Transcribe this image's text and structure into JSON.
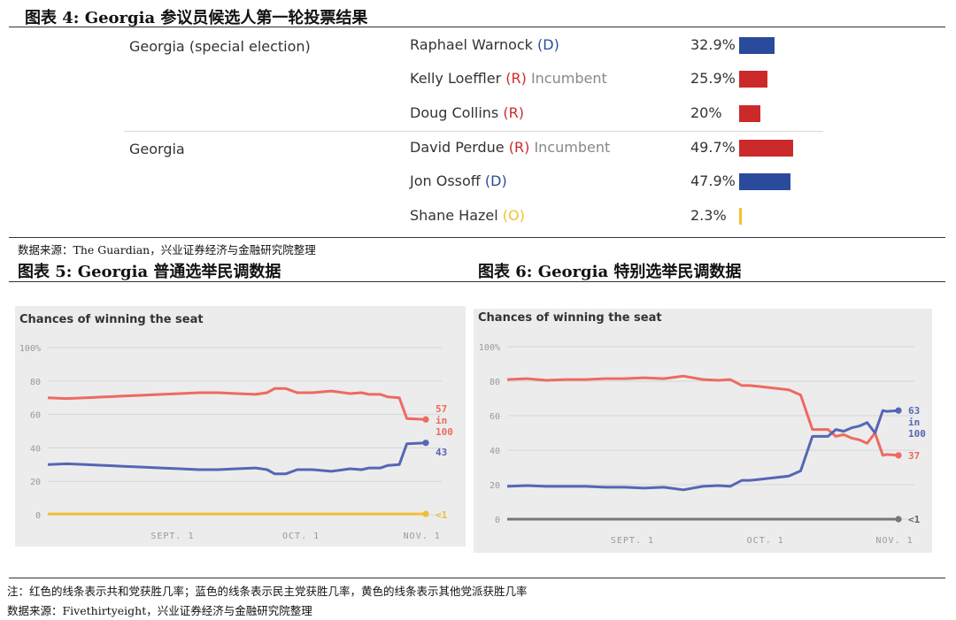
{
  "fig4": {
    "title": "图表 4:  Georgia 参议员候选人第一轮投票结果",
    "source": "数据来源：The Guardian，兴业证券经济与金融研究院整理",
    "rows": [
      {
        "state": "Georgia (special election)",
        "name": "Raphael Warnock",
        "paren": "(D)",
        "party": "D",
        "incumbent": "",
        "pct_label": "32.9%",
        "pct": 32.9
      },
      {
        "state": "",
        "name": "Kelly Loeffler",
        "paren": "(R)",
        "party": "R",
        "incumbent": "Incumbent",
        "pct_label": "25.9%",
        "pct": 25.9
      },
      {
        "state": "",
        "name": "Doug Collins",
        "paren": "(R)",
        "party": "R",
        "incumbent": "",
        "pct_label": "20%",
        "pct": 20
      },
      {
        "state": "Georgia",
        "name": "David Perdue",
        "paren": "(R)",
        "party": "R",
        "incumbent": "Incumbent",
        "pct_label": "49.7%",
        "pct": 49.7
      },
      {
        "state": "",
        "name": "Jon Ossoff",
        "paren": "(D)",
        "party": "D",
        "incumbent": "",
        "pct_label": "47.9%",
        "pct": 47.9
      },
      {
        "state": "",
        "name": "Shane Hazel",
        "paren": "(O)",
        "party": "O",
        "incumbent": "",
        "pct_label": "2.3%",
        "pct": 2.3
      }
    ]
  },
  "fig5": {
    "title": "图表 5:  Georgia 普通选举民调数据"
  },
  "fig6": {
    "title": "图表 6:  Georgia 特别选举民调数据"
  },
  "footer": {
    "note": "注：红色的线条表示共和党获胜几率；蓝色的线条表示民主党获胜几率，黄色的线条表示其他党派获胜几率",
    "source": "数据来源：Fivethirtyeight，兴业证券经济与金融研究院整理"
  },
  "colors": {
    "D": "#2a4b9b",
    "R": "#cc2a2a",
    "O": "#f2c12e",
    "gop_line": "#ee6a60",
    "dem_line": "#5566b5",
    "other5": "#f0be38",
    "other6": "#777777"
  },
  "chart_data": [
    {
      "type": "line",
      "title": "Chances of winning the seat",
      "ylim": [
        0,
        100
      ],
      "yticks": [
        "100%",
        "80",
        "60",
        "40",
        "20",
        "0"
      ],
      "xticks": [
        "SEPT. 1",
        "OCT. 1",
        "NOV. 1"
      ],
      "end_labels": {
        "rep": [
          "57",
          "in",
          "100"
        ],
        "dem": "43",
        "other": "<1"
      },
      "series": [
        {
          "party": "R",
          "x": [
            0,
            5,
            10,
            15,
            20,
            25,
            30,
            35,
            40,
            45,
            50,
            55,
            58,
            60,
            63,
            66,
            70,
            75,
            80,
            83,
            85,
            88,
            90,
            93,
            95,
            100
          ],
          "values": [
            70,
            69.5,
            70,
            70.5,
            71,
            71.5,
            72,
            72.5,
            73,
            73,
            72.5,
            72,
            73,
            75.5,
            75.5,
            73,
            73,
            74,
            72.5,
            73,
            72,
            72,
            70.5,
            70,
            57.5,
            57
          ]
        },
        {
          "party": "D",
          "x": [
            0,
            5,
            10,
            15,
            20,
            25,
            30,
            35,
            40,
            45,
            50,
            55,
            58,
            60,
            63,
            66,
            70,
            75,
            80,
            83,
            85,
            88,
            90,
            93,
            95,
            100
          ],
          "values": [
            30,
            30.5,
            30,
            29.5,
            29,
            28.5,
            28,
            27.5,
            27,
            27,
            27.5,
            28,
            27,
            24.5,
            24.5,
            27,
            27,
            26,
            27.5,
            27,
            28,
            28,
            29.5,
            30,
            42.5,
            43
          ]
        },
        {
          "party": "O",
          "x": [
            0,
            100
          ],
          "values": [
            0.5,
            0.5
          ]
        }
      ]
    },
    {
      "type": "line",
      "title": "Chances of winning the seat",
      "ylim": [
        0,
        100
      ],
      "yticks": [
        "100%",
        "80",
        "60",
        "40",
        "20",
        "0"
      ],
      "xticks": [
        "SEPT. 1",
        "OCT. 1",
        "NOV. 1"
      ],
      "end_labels": {
        "dem": [
          "63",
          "in",
          "100"
        ],
        "rep": "37",
        "other": "<1"
      },
      "series": [
        {
          "party": "R",
          "x": [
            0,
            5,
            10,
            15,
            20,
            25,
            30,
            35,
            40,
            45,
            50,
            54,
            57,
            60,
            62,
            64,
            68,
            72,
            75,
            78,
            80,
            82,
            84,
            86,
            88,
            90,
            92,
            94,
            96,
            97,
            100
          ],
          "values": [
            81,
            81.5,
            80.5,
            81,
            81,
            81.5,
            81.5,
            82,
            81.5,
            83,
            81,
            80.5,
            81,
            77.5,
            77.5,
            77,
            76,
            75,
            72,
            52,
            52,
            52,
            48,
            49,
            47,
            46,
            44,
            50,
            37,
            37.5,
            37
          ]
        },
        {
          "party": "D",
          "x": [
            0,
            5,
            10,
            15,
            20,
            25,
            30,
            35,
            40,
            45,
            50,
            54,
            57,
            60,
            62,
            64,
            68,
            72,
            75,
            78,
            80,
            82,
            84,
            86,
            88,
            90,
            92,
            94,
            96,
            97,
            100
          ],
          "values": [
            19,
            19.5,
            19,
            19,
            19,
            18.5,
            18.5,
            18,
            18.5,
            17,
            19,
            19.5,
            19,
            22.5,
            22.5,
            23,
            24,
            25,
            28,
            48,
            48,
            48,
            52,
            51,
            53,
            54,
            56,
            50,
            63,
            62.5,
            63
          ]
        },
        {
          "party": "O",
          "x": [
            0,
            100
          ],
          "values": [
            0,
            0
          ]
        }
      ]
    }
  ]
}
